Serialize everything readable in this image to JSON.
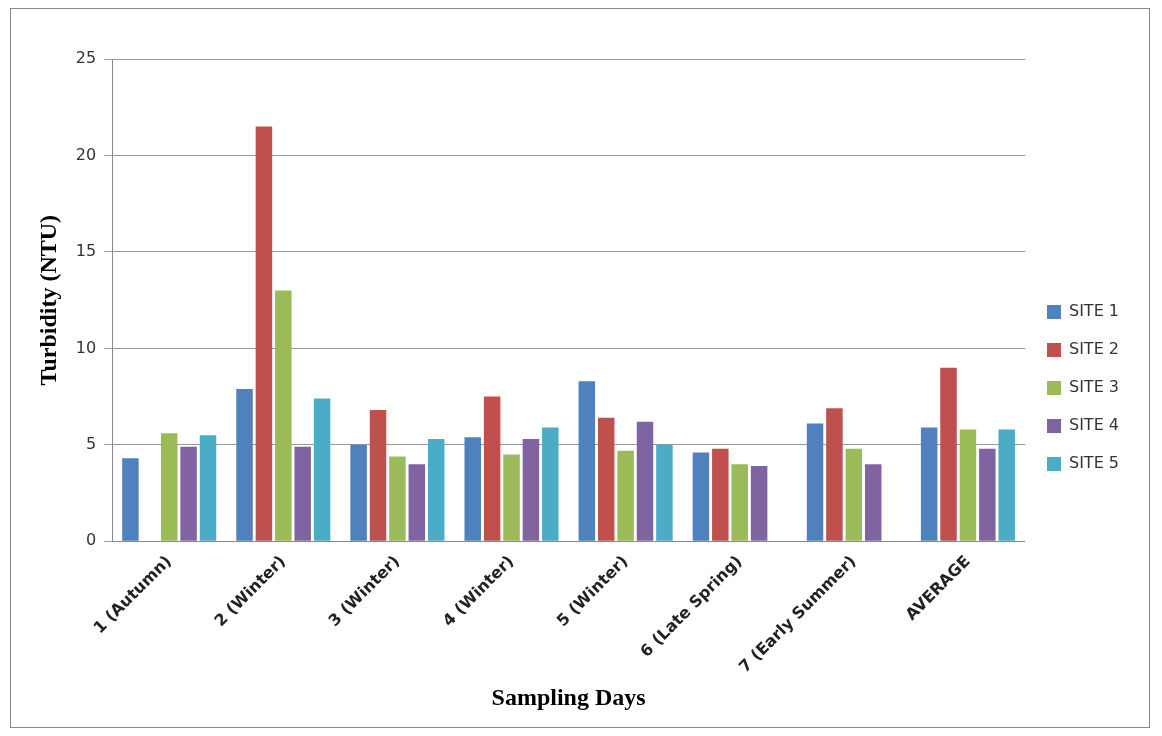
{
  "chart_data": {
    "type": "bar",
    "xlabel": "Sampling Days",
    "ylabel": "Turbidity (NTU)",
    "categories": [
      "1 (Autumn)",
      "2 (Winter)",
      "3 (Winter)",
      "4 (Winter)",
      "5 (Winter)",
      "6 (Late Spring)",
      "7 (Early Summer)",
      "AVERAGE"
    ],
    "series": [
      {
        "name": "SITE 1",
        "color": "#4f81bd",
        "values": [
          4.3,
          7.9,
          5.0,
          5.4,
          8.3,
          4.6,
          6.1,
          5.9
        ]
      },
      {
        "name": "SITE 2",
        "color": "#c0504d",
        "values": [
          0,
          21.5,
          6.8,
          7.5,
          6.4,
          4.8,
          6.9,
          9.0
        ]
      },
      {
        "name": "SITE 3",
        "color": "#9bbb59",
        "values": [
          5.6,
          13.0,
          4.4,
          4.5,
          4.7,
          4.0,
          4.8,
          5.8
        ]
      },
      {
        "name": "SITE 4",
        "color": "#8064a2",
        "values": [
          4.9,
          4.9,
          4.0,
          5.3,
          6.2,
          3.9,
          4.0,
          4.8
        ]
      },
      {
        "name": "SITE 5",
        "color": "#4bacc6",
        "values": [
          5.5,
          7.4,
          5.3,
          5.9,
          5.0,
          0,
          0,
          5.8
        ]
      }
    ],
    "ylim": [
      0,
      25
    ],
    "yticks": [
      0,
      5,
      10,
      15,
      20,
      25
    ],
    "grid": "y",
    "legend": "right"
  }
}
